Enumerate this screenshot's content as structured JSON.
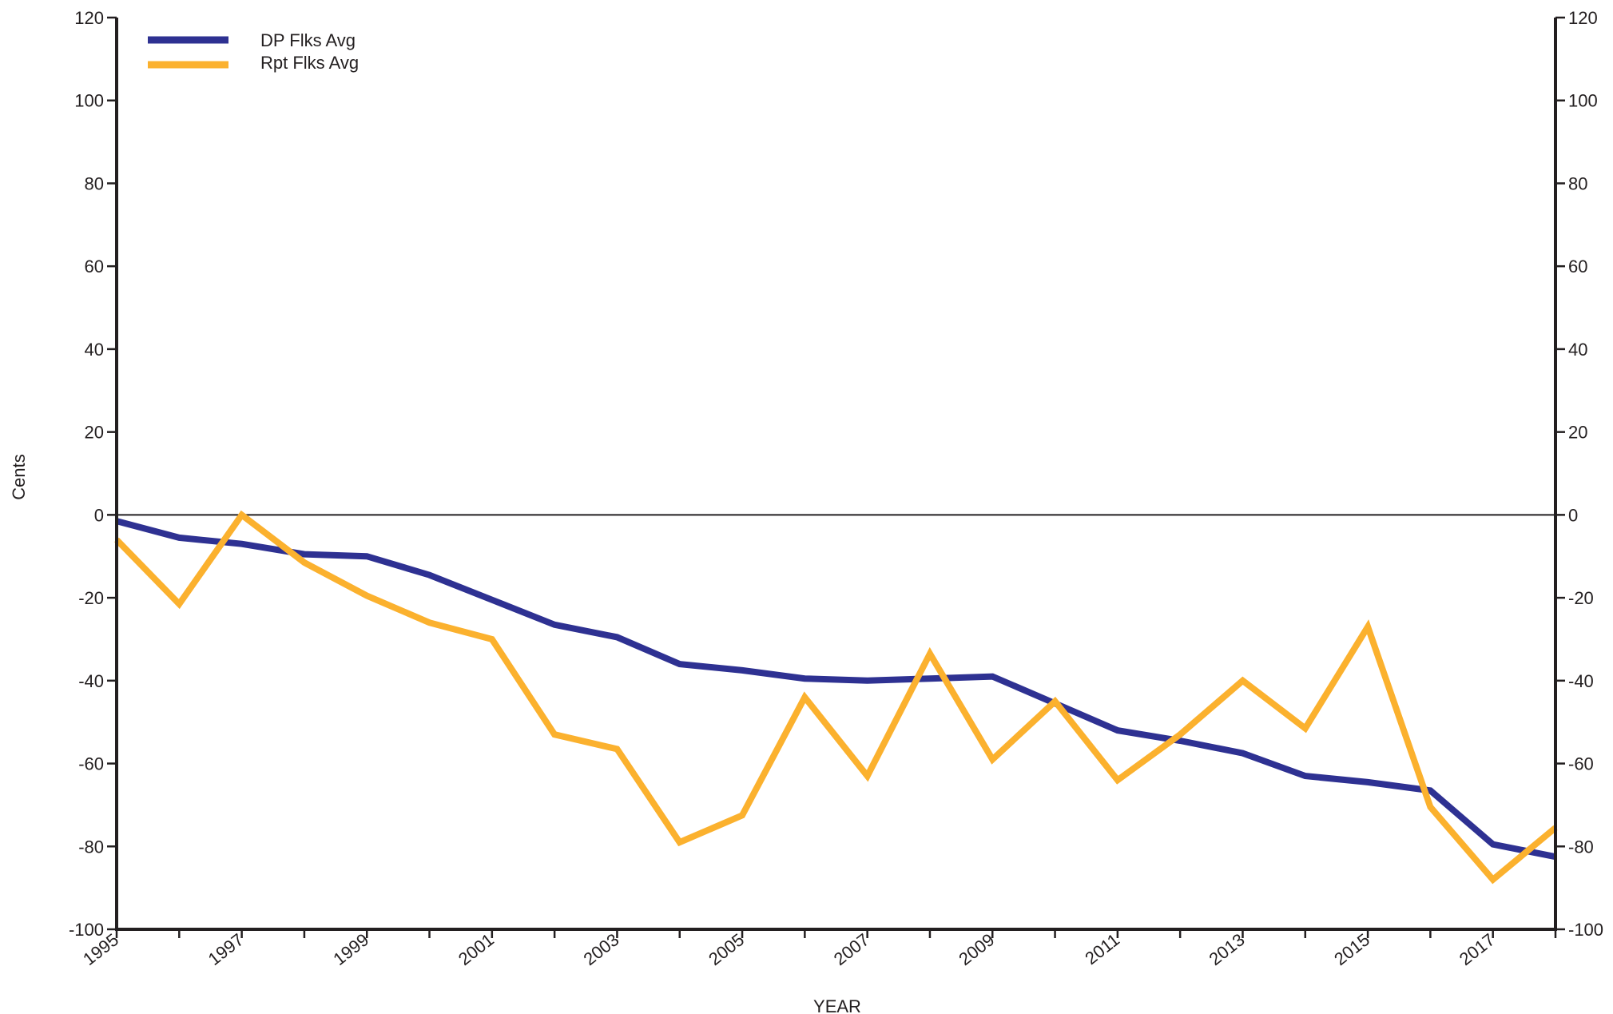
{
  "chart_data": {
    "type": "line",
    "xlabel": "YEAR",
    "ylabel": "Cents",
    "ylim": [
      -100,
      120
    ],
    "yticks": [
      120,
      100,
      80,
      60,
      40,
      20,
      0,
      -20,
      -40,
      -60,
      -80,
      -100
    ],
    "xlim": [
      1995,
      2018
    ],
    "xtick_labels": [
      "1995",
      "1997",
      "1999",
      "2001",
      "2003",
      "2005",
      "2007",
      "2009",
      "2011",
      "2013",
      "2015",
      "2017"
    ],
    "x": [
      1995,
      1996,
      1997,
      1998,
      1999,
      2000,
      2001,
      2002,
      2003,
      2004,
      2005,
      2006,
      2007,
      2008,
      2009,
      2010,
      2011,
      2012,
      2013,
      2014,
      2015,
      2016,
      2017,
      2018
    ],
    "series": [
      {
        "name": "DP Flks Avg",
        "color": "#2e3192",
        "values": [
          -1.5,
          -5.5,
          -7,
          -9.5,
          -10,
          -14.5,
          -20.5,
          -26.5,
          -29.5,
          -36,
          -37.5,
          -39.5,
          -40,
          -39.5,
          -39,
          -45.5,
          -52,
          -54.5,
          -57.5,
          -63,
          -64.5,
          -66.5,
          -79.5,
          -82.5
        ]
      },
      {
        "name": "Rpt Flks Avg",
        "color": "#fbb12e",
        "values": [
          -6,
          -21.5,
          0,
          -11.5,
          -19.5,
          -26,
          -30,
          -53,
          -56.5,
          -79,
          -72.5,
          -44,
          -63,
          -33.5,
          -59,
          -45,
          -64,
          -53,
          -40,
          -51.5,
          -27,
          -70.5,
          -88,
          -75.5
        ]
      }
    ],
    "legend_position": "top-left",
    "grid": false,
    "zero_line": true,
    "dual_y_axis_mirror": true
  }
}
